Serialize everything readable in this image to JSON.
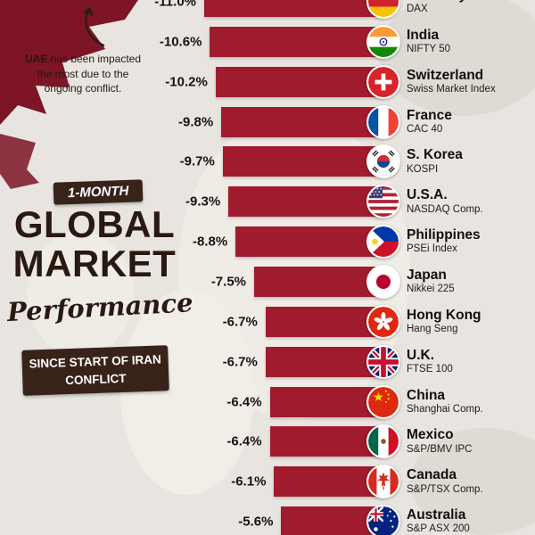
{
  "title_block": {
    "period_badge": "1-MONTH",
    "title_line1": "GLOBAL",
    "title_line2": "MARKET",
    "subtitle_script": "Performance",
    "context_badge_line1": "SINCE START OF IRAN",
    "context_badge_line2": "CONFLICT"
  },
  "annotation": {
    "bold": "UAE",
    "text": " has been impacted the most due to the ongoing conflict."
  },
  "icons": {
    "annotation_arrow": "curved-arrow-up",
    "flag_style": "circular-flag-badge"
  },
  "colors": {
    "bar": "#a01b2e",
    "background": "#e8e5e0",
    "badge_background": "#38231b",
    "headline_text": "#2a1911",
    "map_accent_red": "#7d1526"
  },
  "chart_data": {
    "type": "bar",
    "orientation": "horizontal",
    "title": "1-Month Global Market Performance",
    "subtitle": "Since start of Iran conflict",
    "value_unit": "%",
    "value_range": [
      -11.5,
      0
    ],
    "sort": "descending loss magnitude, top to bottom",
    "rows": [
      {
        "country": "Germany",
        "index": "DAX",
        "value": -11.0,
        "label": "-11.0%",
        "flag": "germany"
      },
      {
        "country": "India",
        "index": "NIFTY 50",
        "value": -10.6,
        "label": "-10.6%",
        "flag": "india"
      },
      {
        "country": "Switzerland",
        "index": "Swiss Market Index",
        "value": -10.2,
        "label": "-10.2%",
        "flag": "switzerland"
      },
      {
        "country": "France",
        "index": "CAC 40",
        "value": -9.8,
        "label": "-9.8%",
        "flag": "france"
      },
      {
        "country": "S. Korea",
        "index": "KOSPI",
        "value": -9.7,
        "label": "-9.7%",
        "flag": "skorea"
      },
      {
        "country": "U.S.A.",
        "index": "NASDAQ Comp.",
        "value": -9.3,
        "label": "-9.3%",
        "flag": "usa"
      },
      {
        "country": "Philippines",
        "index": "PSEi Index",
        "value": -8.8,
        "label": "-8.8%",
        "flag": "philippines"
      },
      {
        "country": "Japan",
        "index": "Nikkei 225",
        "value": -7.5,
        "label": "-7.5%",
        "flag": "japan"
      },
      {
        "country": "Hong Kong",
        "index": "Hang Seng",
        "value": -6.7,
        "label": "-6.7%",
        "flag": "hongkong"
      },
      {
        "country": "U.K.",
        "index": "FTSE 100",
        "value": -6.7,
        "label": "-6.7%",
        "flag": "uk"
      },
      {
        "country": "China",
        "index": "Shanghai Comp.",
        "value": -6.4,
        "label": "-6.4%",
        "flag": "china"
      },
      {
        "country": "Mexico",
        "index": "S&P/BMV IPC",
        "value": -6.4,
        "label": "-6.4%",
        "flag": "mexico"
      },
      {
        "country": "Canada",
        "index": "S&P/TSX Comp.",
        "value": -6.1,
        "label": "-6.1%",
        "flag": "canada"
      },
      {
        "country": "Australia",
        "index": "S&P ASX 200",
        "value": -5.6,
        "label": "-5.6%",
        "flag": "australia"
      }
    ]
  }
}
